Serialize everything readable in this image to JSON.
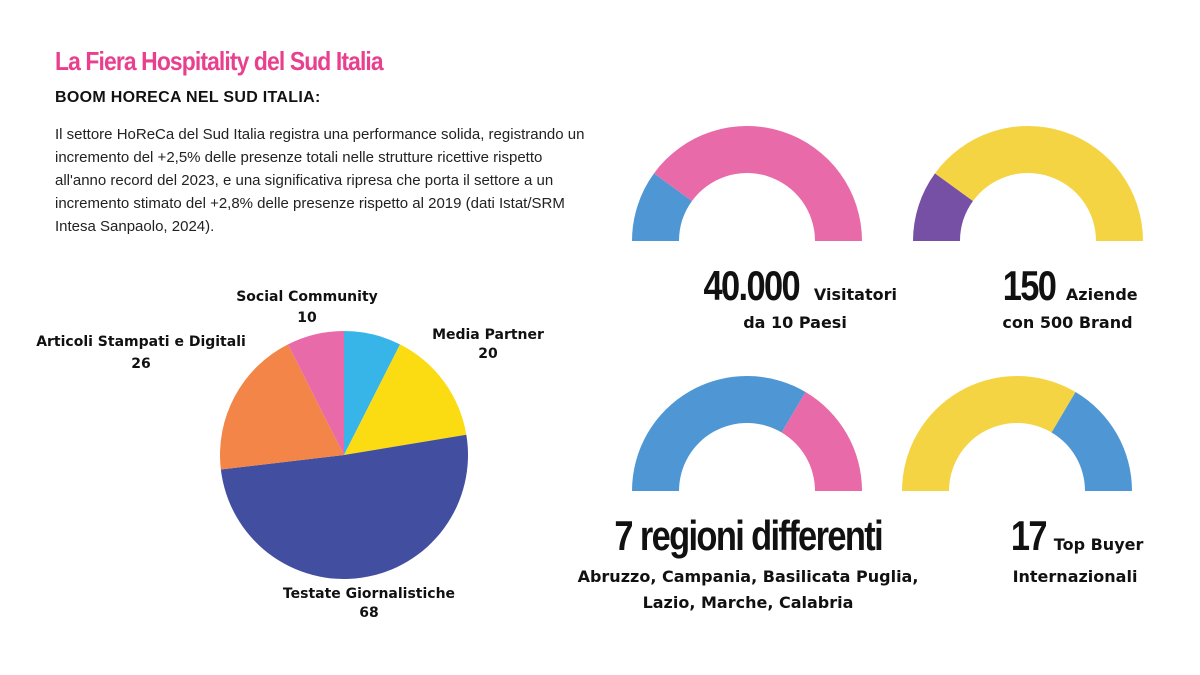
{
  "header": {
    "title": "La Fiera Hospitality del Sud Italia",
    "subtitle": "BOOM HORECA NEL SUD ITALIA:",
    "intro": "Il settore HoReCa del Sud Italia registra una performance solida, registrando un incremento del +2,5% delle presenze totali nelle strutture ricettive rispetto all'anno record del 2023, e una significativa ripresa che porta il settore a un incremento stimato del +2,8% delle presenze rispetto al 2019 (dati Istat/SRM Intesa Sanpaolo, 2024)."
  },
  "colors": {
    "title": "#e8408e",
    "pink": "#e86aa8",
    "blue": "#4f97d4",
    "yellow": "#f4d443",
    "purple": "#7550a4"
  },
  "chart_data": [
    {
      "type": "pie",
      "categories": [
        "Social Community",
        "Media Partner",
        "Testate Giornalistiche",
        "Articoli Stampati e Digitali"
      ],
      "values": [
        10,
        20,
        68,
        26
      ],
      "colors": [
        "#38b5e8",
        "#fbdc13",
        "#424ea0",
        "#f28547",
        "#e86aa8"
      ],
      "extra_slice_colors_note": "",
      "legend": "none"
    },
    {
      "type": "pie",
      "subtype": "semi-donut",
      "segments": [
        {
          "color": "#4f97d4",
          "share": 0.2
        },
        {
          "color": "#e86aa8",
          "share": 0.8
        }
      ]
    },
    {
      "type": "pie",
      "subtype": "semi-donut",
      "segments": [
        {
          "color": "#7550a4",
          "share": 0.2
        },
        {
          "color": "#f4d443",
          "share": 0.8
        }
      ]
    },
    {
      "type": "pie",
      "subtype": "semi-donut",
      "segments": [
        {
          "color": "#4f97d4",
          "share": 0.67
        },
        {
          "color": "#e86aa8",
          "share": 0.33
        }
      ]
    },
    {
      "type": "pie",
      "subtype": "semi-donut",
      "segments": [
        {
          "color": "#f4d443",
          "share": 0.67
        },
        {
          "color": "#4f97d4",
          "share": 0.33
        }
      ]
    }
  ],
  "stats": {
    "visitors": {
      "number": "40.000",
      "label": "Visitatori",
      "sub": "da 10 Paesi"
    },
    "companies": {
      "number": "150",
      "label": "Aziende",
      "sub": "con 500 Brand"
    },
    "regions": {
      "number": "7 regioni differenti",
      "sub": "Abruzzo, Campania, Basilicata Puglia, Lazio, Marche, Calabria"
    },
    "buyers": {
      "number": "17",
      "label": "Top Buyer",
      "sub": "Internazionali"
    }
  }
}
